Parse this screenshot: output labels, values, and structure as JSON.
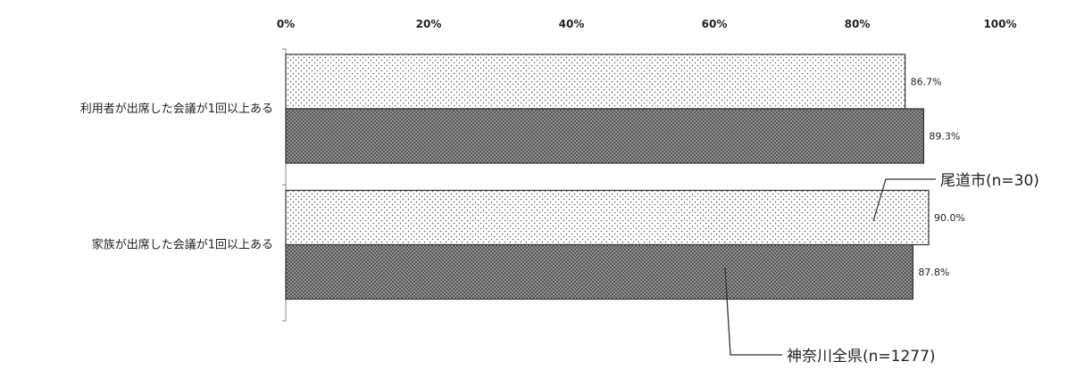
{
  "chart_data": {
    "type": "bar",
    "orientation": "horizontal",
    "categories": [
      "利用者が出席した会議が1回以上ある",
      "家族が出席した会議が1回以上ある"
    ],
    "series": [
      {
        "name": "尾道市(n=30)",
        "values": [
          86.7,
          90.0
        ],
        "value_labels": [
          "86.7%",
          "90.0%"
        ],
        "pattern": "dotted",
        "color": "#ffffff"
      },
      {
        "name": "神奈川全県(n=1277)",
        "values": [
          89.3,
          87.8
        ],
        "value_labels": [
          "89.3%",
          "87.8%"
        ],
        "pattern": "crosshatch",
        "color": "#9a9a9a"
      }
    ],
    "xlim": [
      0,
      100
    ],
    "x_ticks": [
      "0%",
      "20%",
      "40%",
      "60%",
      "80%",
      "100%"
    ],
    "x_tick_values": [
      0,
      20,
      40,
      60,
      80,
      100
    ],
    "grid": false,
    "legend": "callout-right"
  }
}
